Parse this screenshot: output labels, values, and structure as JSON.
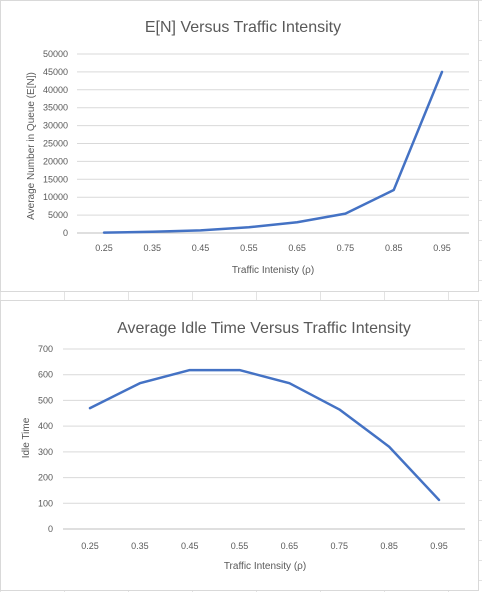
{
  "chart_data": [
    {
      "type": "line",
      "title": "E[N] Versus Traffic Intensity",
      "xlabel": "Traffic Intenisty (ρ)",
      "ylabel": "Average Number in Queue (E[N])",
      "categories": [
        "0.25",
        "0.35",
        "0.45",
        "0.55",
        "0.65",
        "0.75",
        "0.85",
        "0.95"
      ],
      "series": [
        {
          "values": [
            100,
            350,
            750,
            1600,
            3000,
            5400,
            12000,
            45000
          ]
        }
      ],
      "ylim": [
        0,
        50000
      ],
      "yticks": [
        "0",
        "5000",
        "10000",
        "15000",
        "20000",
        "25000",
        "30000",
        "35000",
        "40000",
        "45000",
        "50000"
      ],
      "grid": true,
      "line_color": "#4472c4"
    },
    {
      "type": "line",
      "title": "Average Idle Time Versus Traffic Intensity",
      "xlabel": "Traffic Intensity (ρ)",
      "ylabel": "Idle Time",
      "categories": [
        "0.25",
        "0.35",
        "0.45",
        "0.55",
        "0.65",
        "0.75",
        "0.85",
        "0.95"
      ],
      "series": [
        {
          "values": [
            470,
            567,
            618,
            618,
            567,
            465,
            320,
            113
          ]
        }
      ],
      "ylim": [
        0,
        700
      ],
      "yticks": [
        "0",
        "100",
        "200",
        "300",
        "400",
        "500",
        "600",
        "700"
      ],
      "grid": true,
      "line_color": "#4472c4"
    }
  ]
}
